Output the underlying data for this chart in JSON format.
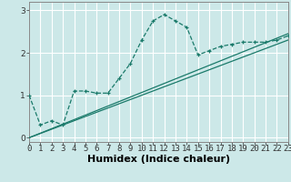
{
  "xlabel": "Humidex (Indice chaleur)",
  "bg_color": "#cce8e8",
  "line_color": "#1a7a6a",
  "grid_color": "#ffffff",
  "x_ticks": [
    0,
    1,
    2,
    3,
    4,
    5,
    6,
    7,
    8,
    9,
    10,
    11,
    12,
    13,
    14,
    15,
    16,
    17,
    18,
    19,
    20,
    21,
    22,
    23
  ],
  "y_ticks": [
    0,
    1,
    2,
    3
  ],
  "xlim": [
    0,
    23
  ],
  "ylim": [
    -0.1,
    3.2
  ],
  "series1_x": [
    0,
    1,
    2,
    3,
    4,
    5,
    6,
    7,
    8,
    9,
    10,
    11,
    12,
    13,
    14,
    15,
    16,
    17,
    18,
    19,
    20,
    21,
    22,
    23
  ],
  "series1_y": [
    1.0,
    0.3,
    0.4,
    0.3,
    1.1,
    1.1,
    1.05,
    1.05,
    1.4,
    1.75,
    2.3,
    2.75,
    2.9,
    2.75,
    2.6,
    1.95,
    2.05,
    2.15,
    2.2,
    2.25,
    2.25,
    2.25,
    2.3,
    2.4
  ],
  "series2_x": [
    0,
    23
  ],
  "series2_y": [
    0.0,
    2.3
  ],
  "series3_x": [
    0,
    23
  ],
  "series3_y": [
    0.0,
    2.45
  ],
  "xlabel_fontsize": 8,
  "tick_fontsize": 6.5
}
